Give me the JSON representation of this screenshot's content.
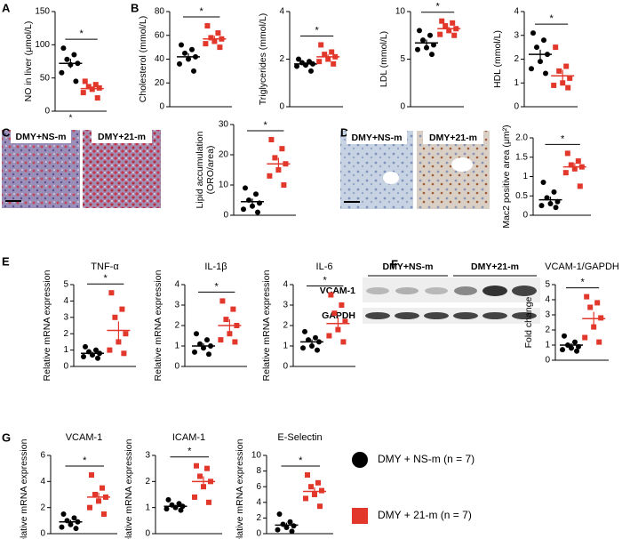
{
  "panels": [
    "A",
    "B",
    "C",
    "D",
    "E",
    "F",
    "G"
  ],
  "micrograph_labels": [
    "DMY+NS-m",
    "DMY+21-m",
    "DMY+NS-m",
    "DMY+21-m"
  ],
  "blot": {
    "groups": [
      "DMY+NS-m",
      "DMY+21-m"
    ],
    "bands": [
      "VCAM-1",
      "GAPDH"
    ]
  },
  "legend": [
    {
      "name": "DMY + NS-m (n = 7)",
      "color": "#000000",
      "marker": "circle"
    },
    {
      "name": "DMY + 21-m (n = 7)",
      "color": "#e2372b",
      "marker": "square"
    }
  ],
  "chart_data": [
    {
      "type": "dot",
      "ylabel": "NO in liver (μmol/L)",
      "ylim": [
        0,
        150
      ],
      "yticks": [
        0,
        50,
        100,
        150
      ],
      "annotation": "*",
      "footnote": "*",
      "series": [
        {
          "color": "#000000",
          "marker": "circle",
          "values": [
            95,
            85,
            78,
            72,
            70,
            58,
            45
          ],
          "mean": 72,
          "error": 7
        },
        {
          "color": "#e2372b",
          "marker": "square",
          "values": [
            45,
            40,
            37,
            35,
            33,
            28,
            20
          ],
          "mean": 34,
          "error": 3
        }
      ]
    },
    {
      "type": "dot",
      "ylabel": "Cholesterol (mmol/L)",
      "ylim": [
        0,
        80
      ],
      "yticks": [
        0,
        20,
        40,
        60,
        80
      ],
      "annotation": "*",
      "series": [
        {
          "color": "#000000",
          "marker": "circle",
          "values": [
            52,
            48,
            45,
            42,
            40,
            36,
            30
          ],
          "mean": 42,
          "error": 3
        },
        {
          "color": "#e2372b",
          "marker": "square",
          "values": [
            68,
            62,
            58,
            57,
            55,
            53,
            50
          ],
          "mean": 57,
          "error": 2.5
        }
      ]
    },
    {
      "type": "dot",
      "ylabel": "Triglycerides (mmol/L)",
      "ylim": [
        0,
        4
      ],
      "yticks": [
        0,
        2,
        4
      ],
      "annotation": "*",
      "series": [
        {
          "color": "#000000",
          "marker": "circle",
          "values": [
            2.0,
            1.9,
            1.85,
            1.8,
            1.75,
            1.7,
            1.5
          ],
          "mean": 1.8,
          "error": 0.07
        },
        {
          "color": "#e2372b",
          "marker": "square",
          "values": [
            2.6,
            2.3,
            2.2,
            2.1,
            2.0,
            1.9,
            1.8
          ],
          "mean": 2.1,
          "error": 0.1
        }
      ]
    },
    {
      "type": "dot",
      "ylabel": "LDL (mmol/L)",
      "ylim": [
        0,
        10
      ],
      "yticks": [
        0,
        5,
        10
      ],
      "annotation": "*",
      "series": [
        {
          "color": "#000000",
          "marker": "circle",
          "values": [
            8.0,
            7.5,
            7.0,
            6.5,
            6.2,
            6.0,
            5.5
          ],
          "mean": 6.7,
          "error": 0.35
        },
        {
          "color": "#e2372b",
          "marker": "square",
          "values": [
            9.0,
            8.8,
            8.5,
            8.2,
            8.0,
            7.6,
            7.5
          ],
          "mean": 8.2,
          "error": 0.2
        }
      ]
    },
    {
      "type": "dot",
      "ylabel": "HDL (mmol/L)",
      "ylim": [
        0,
        4
      ],
      "yticks": [
        0,
        1,
        2,
        3,
        4
      ],
      "annotation": "*",
      "series": [
        {
          "color": "#000000",
          "marker": "circle",
          "values": [
            3.1,
            2.8,
            2.5,
            2.2,
            1.9,
            1.6,
            1.4
          ],
          "mean": 2.2,
          "error": 0.2
        },
        {
          "color": "#e2372b",
          "marker": "square",
          "values": [
            2.5,
            1.7,
            1.5,
            1.2,
            1.0,
            0.9,
            0.8
          ],
          "mean": 1.3,
          "error": 0.25
        }
      ]
    },
    {
      "type": "dot",
      "ylabel": [
        "Lipid accumulation",
        "(ORO/area)"
      ],
      "ylim": [
        0,
        30
      ],
      "yticks": [
        0,
        10,
        20,
        30
      ],
      "annotation": "*",
      "series": [
        {
          "color": "#000000",
          "marker": "circle",
          "values": [
            9,
            7,
            5,
            4,
            3,
            2,
            1
          ],
          "mean": 4.5,
          "error": 1
        },
        {
          "color": "#e2372b",
          "marker": "square",
          "values": [
            25,
            22,
            19,
            17,
            15,
            13,
            10
          ],
          "mean": 17,
          "error": 2
        }
      ]
    },
    {
      "type": "dot",
      "ylabel": "Mac2 positive area (μm²)",
      "ylim": [
        0,
        2
      ],
      "yticks": [
        0,
        0.5,
        1,
        1.5,
        {
          "value": 2,
          "label": "2.0"
        }
      ],
      "annotation": "*",
      "series": [
        {
          "color": "#000000",
          "marker": "circle",
          "values": [
            0.85,
            0.6,
            0.45,
            0.35,
            0.3,
            0.25,
            0.2
          ],
          "mean": 0.4,
          "error": 0.08
        },
        {
          "color": "#e2372b",
          "marker": "square",
          "values": [
            1.6,
            1.4,
            1.3,
            1.25,
            1.2,
            1.1,
            0.75
          ],
          "mean": 1.25,
          "error": 0.1
        }
      ]
    },
    {
      "type": "dot",
      "title": "TNF-α",
      "ylabel": "Relative mRNA expression",
      "ylim": [
        0,
        5
      ],
      "yticks": [
        0,
        1,
        2,
        3,
        4,
        5
      ],
      "annotation": "*",
      "series": [
        {
          "color": "#000000",
          "marker": "circle",
          "values": [
            1.2,
            1.0,
            0.9,
            0.8,
            0.7,
            0.6,
            0.5
          ],
          "mean": 0.8,
          "error": 0.1
        },
        {
          "color": "#e2372b",
          "marker": "square",
          "values": [
            4.5,
            3.5,
            3.0,
            2.0,
            1.5,
            1.0,
            0.8
          ],
          "mean": 2.2,
          "error": 0.55
        }
      ]
    },
    {
      "type": "dot",
      "title": "IL-1β",
      "ylabel": "Relative mRNA expression",
      "ylim": [
        0,
        4
      ],
      "yticks": [
        0,
        1,
        2,
        3,
        4
      ],
      "annotation": "*",
      "series": [
        {
          "color": "#000000",
          "marker": "circle",
          "values": [
            1.6,
            1.3,
            1.1,
            1.0,
            0.9,
            0.7,
            0.6
          ],
          "mean": 1.0,
          "error": 0.13
        },
        {
          "color": "#e2372b",
          "marker": "square",
          "values": [
            3.2,
            2.8,
            2.3,
            2.0,
            1.6,
            1.3,
            1.2
          ],
          "mean": 2.0,
          "error": 0.3
        }
      ]
    },
    {
      "type": "dot",
      "title": "IL-6",
      "ylabel": "Relative mRNA expression",
      "ylim": [
        0,
        4
      ],
      "yticks": [
        0,
        1,
        2,
        3,
        4
      ],
      "annotation": "*",
      "series": [
        {
          "color": "#000000",
          "marker": "circle",
          "values": [
            1.7,
            1.4,
            1.3,
            1.2,
            1.0,
            0.9,
            0.8
          ],
          "mean": 1.2,
          "error": 0.12
        },
        {
          "color": "#e2372b",
          "marker": "square",
          "values": [
            3.5,
            3.0,
            2.6,
            2.2,
            1.8,
            1.5,
            1.2
          ],
          "mean": 2.1,
          "error": 0.3
        }
      ]
    },
    {
      "type": "dot",
      "title": "VCAM-1/GAPDH",
      "ylabel": "Fold change",
      "ylim": [
        0,
        5
      ],
      "yticks": [
        0,
        1,
        2,
        3,
        4,
        5
      ],
      "annotation": "*",
      "series": [
        {
          "color": "#000000",
          "marker": "circle",
          "values": [
            1.6,
            1.2,
            1.0,
            0.9,
            0.8,
            0.7,
            0.6
          ],
          "mean": 1.0,
          "error": 0.13
        },
        {
          "color": "#e2372b",
          "marker": "square",
          "values": [
            4.2,
            3.8,
            3.5,
            2.8,
            2.2,
            1.5,
            1.2
          ],
          "mean": 2.75,
          "error": 0.45
        }
      ]
    },
    {
      "type": "dot",
      "title": "VCAM-1",
      "ylabel": "Relative mRNA expression",
      "ylim": [
        0,
        6
      ],
      "yticks": [
        0,
        2,
        4,
        6
      ],
      "annotation": "*",
      "series": [
        {
          "color": "#000000",
          "marker": "circle",
          "values": [
            1.5,
            1.2,
            1.0,
            0.9,
            0.7,
            0.5,
            0.4
          ],
          "mean": 0.9,
          "error": 0.15
        },
        {
          "color": "#e2372b",
          "marker": "square",
          "values": [
            4.5,
            3.5,
            3.0,
            2.8,
            2.5,
            2.0,
            1.5
          ],
          "mean": 2.8,
          "error": 0.35
        }
      ]
    },
    {
      "type": "dot",
      "title": "ICAM-1",
      "ylabel": "Relative mRNA expression",
      "ylim": [
        0,
        3
      ],
      "yticks": [
        0,
        1,
        2,
        3
      ],
      "annotation": "*",
      "series": [
        {
          "color": "#000000",
          "marker": "circle",
          "values": [
            1.3,
            1.15,
            1.1,
            1.05,
            1.0,
            0.95,
            0.9
          ],
          "mean": 1.05,
          "error": 0.05
        },
        {
          "color": "#e2372b",
          "marker": "square",
          "values": [
            2.6,
            2.5,
            2.2,
            2.0,
            1.8,
            1.4,
            1.2
          ],
          "mean": 2.0,
          "error": 0.2
        }
      ]
    },
    {
      "type": "dot",
      "title": "E-Selectin",
      "ylabel": "Relative mRNA expression",
      "ylim": [
        0,
        10
      ],
      "yticks": [
        0,
        2,
        4,
        6,
        8,
        10
      ],
      "annotation": "*",
      "series": [
        {
          "color": "#000000",
          "marker": "circle",
          "values": [
            2.5,
            1.5,
            1.2,
            1.0,
            0.8,
            0.5,
            0.3
          ],
          "mean": 1.1,
          "error": 0.3
        },
        {
          "color": "#e2372b",
          "marker": "square",
          "values": [
            7.5,
            6.5,
            6.0,
            5.5,
            5.0,
            4.5,
            3.5
          ],
          "mean": 5.4,
          "error": 0.5
        }
      ]
    }
  ]
}
